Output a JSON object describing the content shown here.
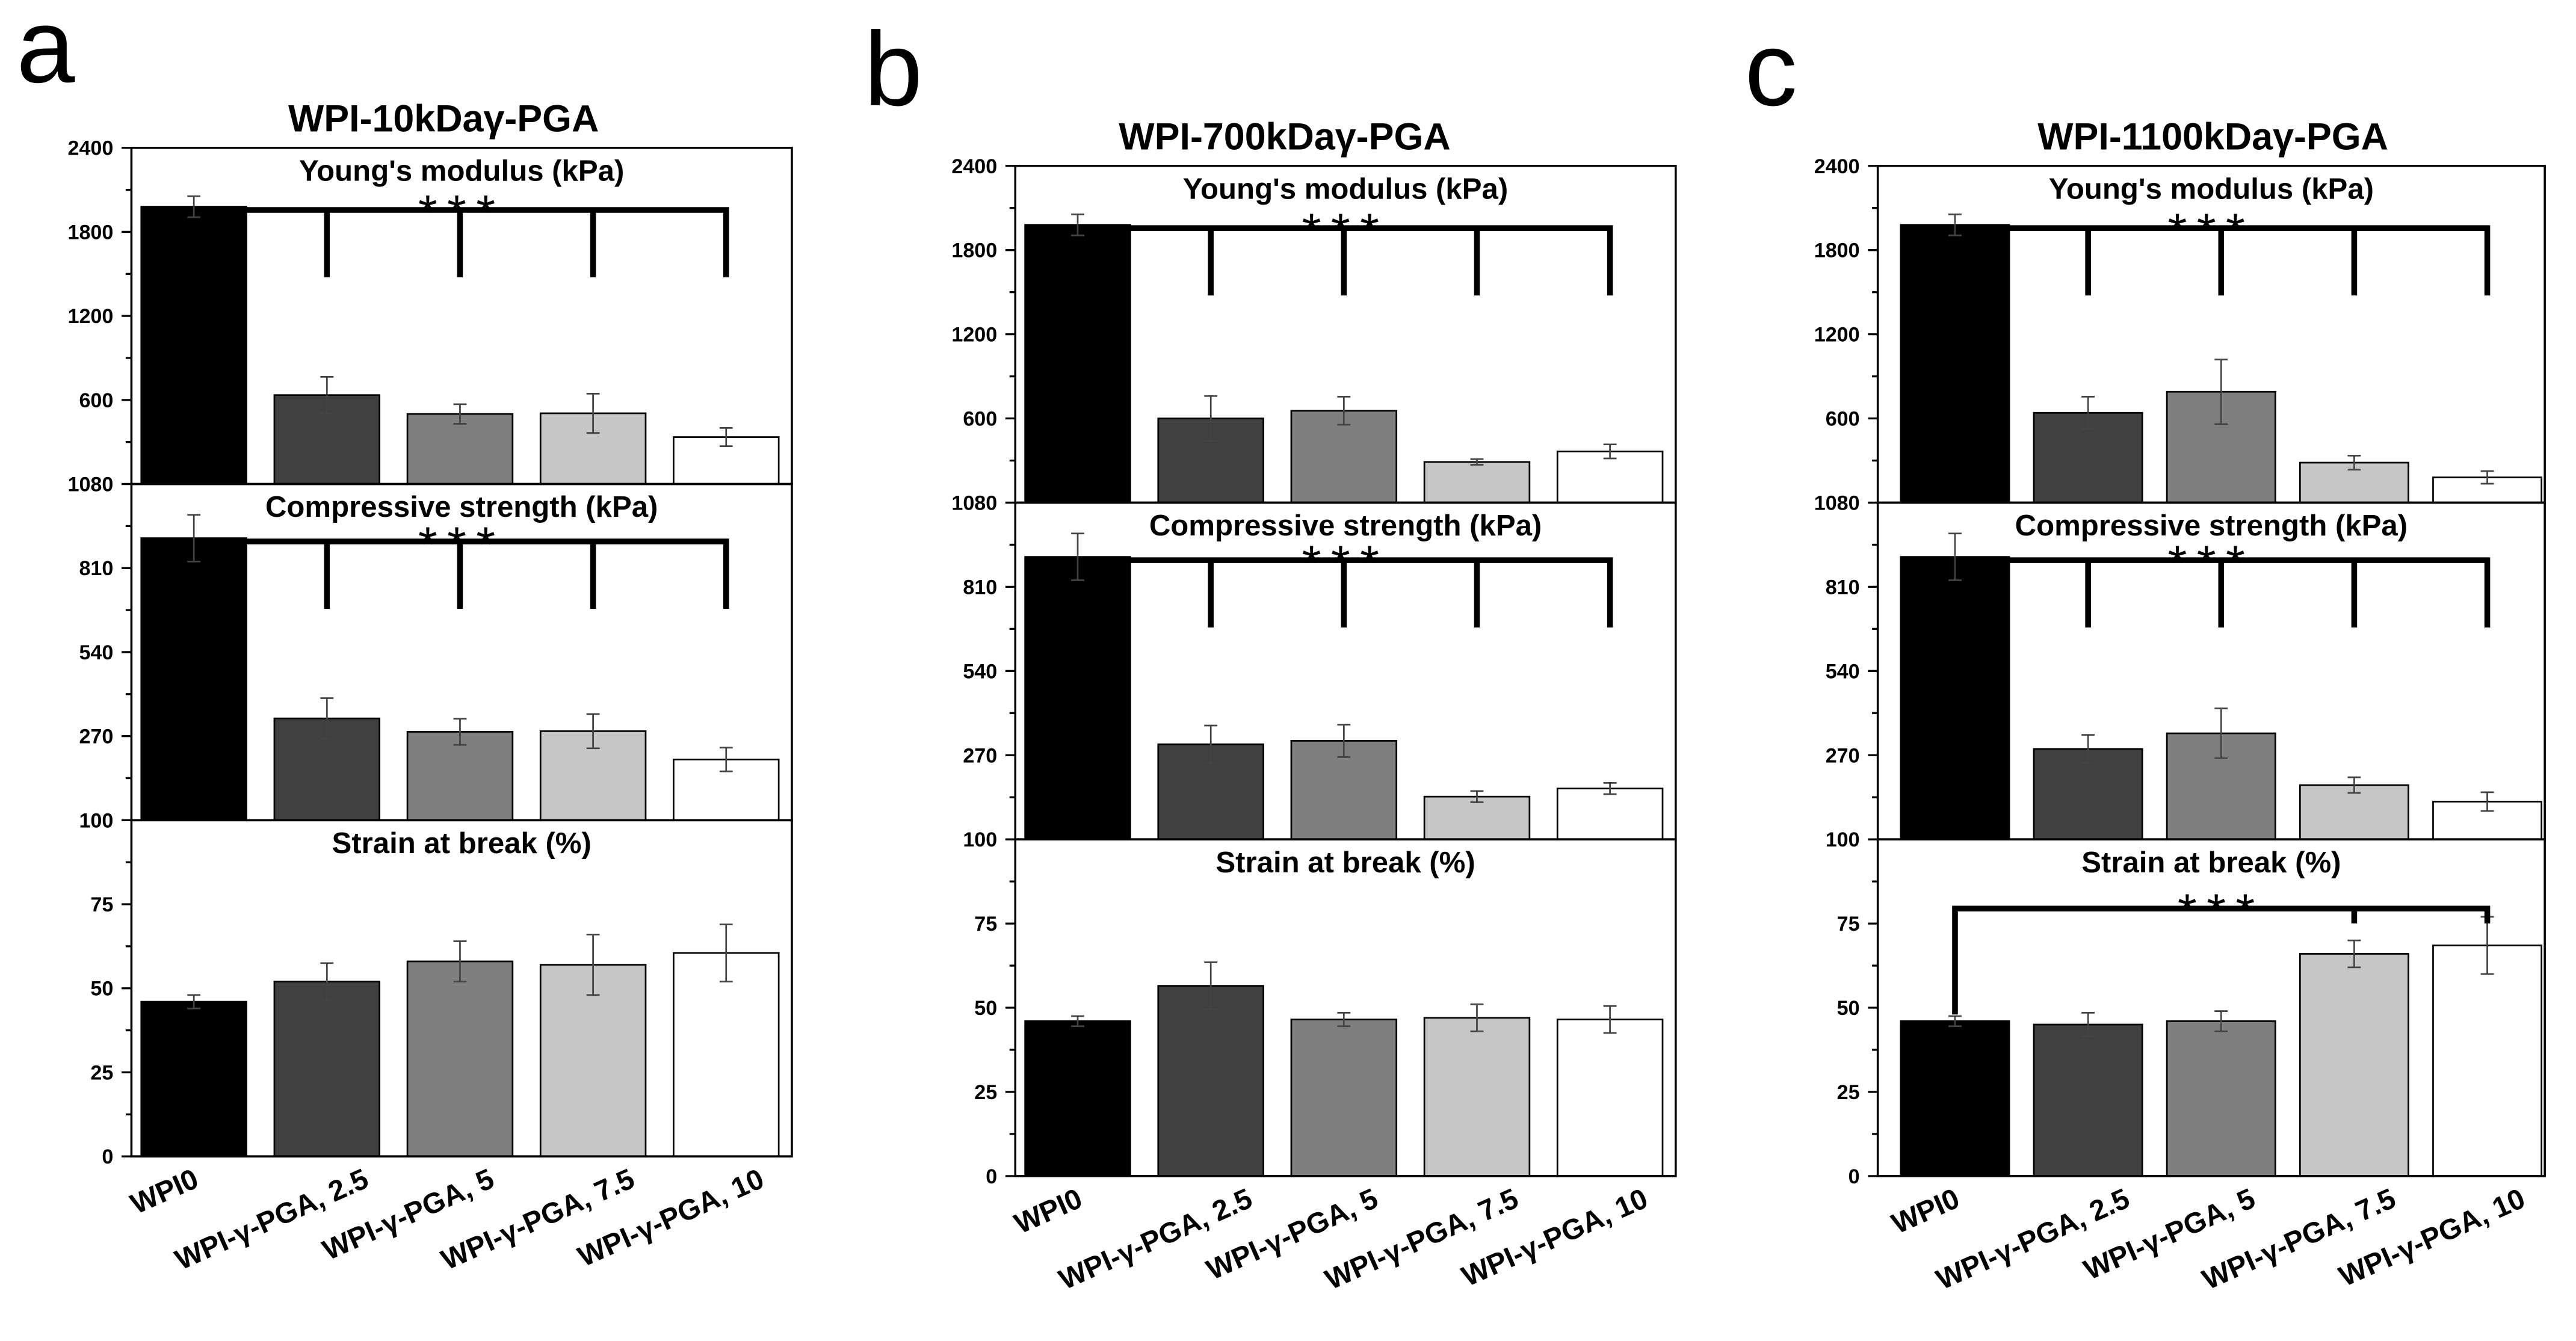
{
  "chart_data": [
    {
      "type": "bar",
      "label": "a",
      "title": "WPI-10kDaγ-PGA",
      "categories": [
        "WPI0",
        "WPI-γ-PGA, 2.5",
        "WPI-γ-PGA, 5",
        "WPI-γ-PGA, 7.5",
        "WPI-γ-PGA, 10"
      ],
      "colors": [
        "#000000",
        "#404040",
        "#7f7f7f",
        "#c6c6c6",
        "#ffffff"
      ],
      "grid": false,
      "subplots": [
        {
          "title": "Young's modulus (kPa)",
          "ylim": [
            0,
            2400
          ],
          "yticks": [
            600,
            1200,
            1800,
            2400
          ],
          "values": [
            1980,
            635,
            500,
            505,
            335
          ],
          "errors": [
            75,
            130,
            70,
            140,
            65
          ],
          "significance": [
            {
              "label": "***",
              "from": 0,
              "to": [
                1,
                2,
                3,
                4
              ]
            }
          ]
        },
        {
          "title": "Compressive strength (kPa)",
          "ylim": [
            0,
            1080
          ],
          "yticks": [
            270,
            540,
            810,
            1080
          ],
          "values": [
            906,
            327,
            284,
            286,
            195
          ],
          "errors": [
            75,
            65,
            42,
            55,
            38
          ],
          "significance": [
            {
              "label": "***",
              "from": 0,
              "to": [
                1,
                2,
                3,
                4
              ]
            }
          ]
        },
        {
          "title": "Strain at break (%)",
          "ylim": [
            0,
            100
          ],
          "yticks": [
            0,
            25,
            50,
            75,
            100
          ],
          "values": [
            46,
            52,
            58,
            57,
            60.5
          ],
          "errors": [
            2,
            5.5,
            6,
            9,
            8.5
          ]
        }
      ]
    },
    {
      "type": "bar",
      "label": "b",
      "title": "WPI-700kDaγ-PGA",
      "categories": [
        "WPI0",
        "WPI-γ-PGA, 2.5",
        "WPI-γ-PGA, 5",
        "WPI-γ-PGA, 7.5",
        "WPI-γ-PGA, 10"
      ],
      "colors": [
        "#000000",
        "#404040",
        "#7f7f7f",
        "#c6c6c6",
        "#ffffff"
      ],
      "grid": false,
      "subplots": [
        {
          "title": "Young's modulus (kPa)",
          "ylim": [
            0,
            2400
          ],
          "yticks": [
            600,
            1200,
            1800,
            2400
          ],
          "values": [
            1980,
            600,
            655,
            290,
            365
          ],
          "errors": [
            75,
            160,
            100,
            20,
            50
          ],
          "significance": [
            {
              "label": "***",
              "from": 0,
              "to": [
                1,
                2,
                3,
                4
              ]
            }
          ]
        },
        {
          "title": "Compressive strength (kPa)",
          "ylim": [
            0,
            1080
          ],
          "yticks": [
            270,
            540,
            810,
            1080
          ],
          "values": [
            906,
            305,
            316,
            137,
            163
          ],
          "errors": [
            75,
            60,
            52,
            18,
            18
          ],
          "significance": [
            {
              "label": "***",
              "from": 0,
              "to": [
                1,
                2,
                3,
                4
              ]
            }
          ]
        },
        {
          "title": "Strain at break (%)",
          "ylim": [
            0,
            100
          ],
          "yticks": [
            0,
            25,
            50,
            75,
            100
          ],
          "values": [
            46,
            56.5,
            46.5,
            47,
            46.5
          ],
          "errors": [
            1.5,
            7,
            2,
            4,
            4
          ]
        }
      ]
    },
    {
      "type": "bar",
      "label": "c",
      "title": "WPI-1100kDaγ-PGA",
      "categories": [
        "WPI0",
        "WPI-γ-PGA, 2.5",
        "WPI-γ-PGA, 5",
        "WPI-γ-PGA, 7.5",
        "WPI-γ-PGA, 10"
      ],
      "colors": [
        "#000000",
        "#404040",
        "#7f7f7f",
        "#c6c6c6",
        "#ffffff"
      ],
      "grid": false,
      "subplots": [
        {
          "title": "Young's modulus (kPa)",
          "ylim": [
            0,
            2400
          ],
          "yticks": [
            600,
            1200,
            1800,
            2400
          ],
          "values": [
            1980,
            640,
            790,
            285,
            180
          ],
          "errors": [
            75,
            115,
            230,
            50,
            45
          ],
          "significance": [
            {
              "label": "***",
              "from": 0,
              "to": [
                1,
                2,
                3,
                4
              ]
            }
          ]
        },
        {
          "title": "Compressive strength (kPa)",
          "ylim": [
            0,
            1080
          ],
          "yticks": [
            270,
            540,
            810,
            1080
          ],
          "values": [
            906,
            290,
            340,
            174,
            121
          ],
          "errors": [
            75,
            45,
            80,
            25,
            30
          ],
          "significance": [
            {
              "label": "***",
              "from": 0,
              "to": [
                1,
                2,
                3,
                4
              ]
            }
          ]
        },
        {
          "title": "Strain at break (%)",
          "ylim": [
            0,
            100
          ],
          "yticks": [
            0,
            25,
            50,
            75,
            100
          ],
          "values": [
            46,
            45,
            46,
            66,
            68.5
          ],
          "errors": [
            1.5,
            3.5,
            3,
            4,
            8.5
          ],
          "significance": [
            {
              "label": "***",
              "from": 0,
              "to": [
                3,
                4
              ]
            }
          ]
        }
      ]
    }
  ]
}
